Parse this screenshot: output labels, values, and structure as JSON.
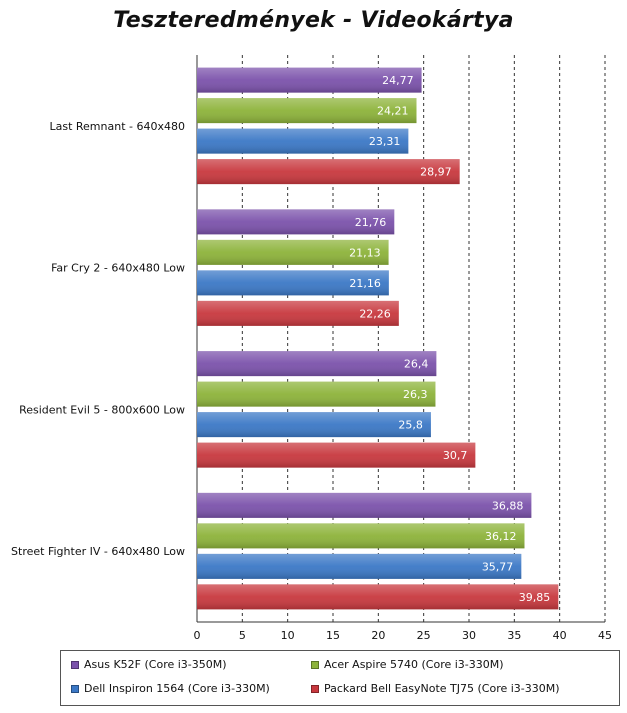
{
  "chart_data": {
    "type": "bar",
    "orientation": "horizontal",
    "title": "Teszteredmények - Videokártya",
    "categories": [
      "Last Remnant - 640x480",
      "Far Cry 2 - 640x480 Low",
      "Resident Evil 5 - 800x600 Low",
      "Street Fighter IV - 640x480 Low"
    ],
    "series": [
      {
        "name": "Asus K52F (Core i3-350M)",
        "color": "#7b52ab",
        "values": [
          24.77,
          21.76,
          26.4,
          36.88
        ],
        "labels": [
          "24,77",
          "21,76",
          "26,4",
          "36,88"
        ]
      },
      {
        "name": "Acer Aspire 5740 (Core i3-330M)",
        "color": "#8db33a",
        "values": [
          24.21,
          21.13,
          26.3,
          36.12
        ],
        "labels": [
          "24,21",
          "21,13",
          "26,3",
          "36,12"
        ]
      },
      {
        "name": "Dell Inspiron 1564 (Core i3-330M)",
        "color": "#3b78c6",
        "values": [
          23.31,
          21.16,
          25.8,
          35.77
        ],
        "labels": [
          "23,31",
          "21,16",
          "25,8",
          "35,77"
        ]
      },
      {
        "name": "Packard Bell EasyNote  TJ75 (Core i3-330M)",
        "color": "#c8383e",
        "values": [
          28.97,
          22.26,
          30.7,
          39.85
        ],
        "labels": [
          "28,97",
          "22,26",
          "30,7",
          "39,85"
        ]
      }
    ],
    "xlim": [
      0,
      45
    ],
    "xticks": [
      0,
      5,
      10,
      15,
      20,
      25,
      30,
      35,
      40,
      45
    ],
    "grid": true,
    "legend_position": "bottom"
  }
}
